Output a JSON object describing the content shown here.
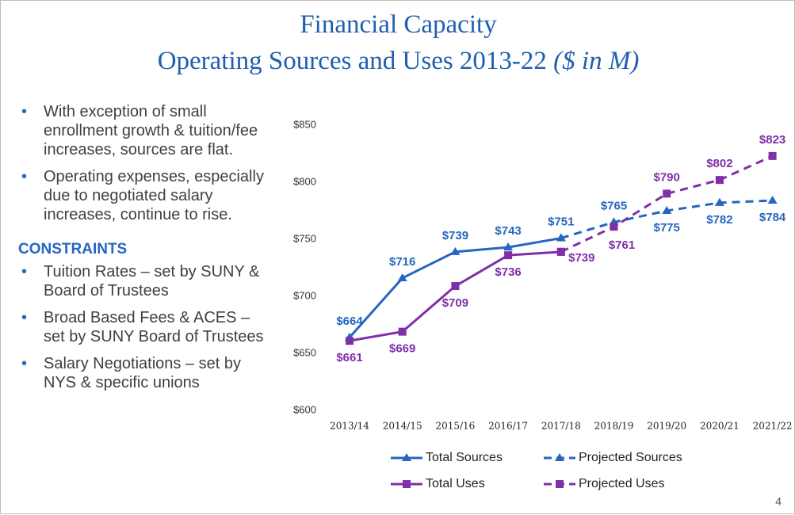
{
  "title": "Financial Capacity",
  "subtitle": "Operating Sources and Uses 2013-22",
  "subtitle_unit": "($ in M)",
  "bullets": [
    "With exception of small enrollment growth & tuition/fee increases, sources are flat.",
    "Operating expenses, especially due to negotiated salary increases, continue to rise."
  ],
  "constraints_heading": "CONSTRAINTS",
  "constraints": [
    "Tuition Rates – set by SUNY & Board of Trustees",
    "Broad Based Fees & ACES – set by SUNY Board of Trustees",
    "Salary Negotiations – set by NYS & specific unions"
  ],
  "page_number": "4",
  "chart_data": {
    "type": "line",
    "categories": [
      "2013/14",
      "2014/15",
      "2015/16",
      "2016/17",
      "2017/18",
      "2018/19",
      "2019/20",
      "2020/21",
      "2021/22"
    ],
    "ylim": [
      600,
      850
    ],
    "yticks": [
      {
        "value": 600,
        "label": "$600"
      },
      {
        "value": 650,
        "label": "$650"
      },
      {
        "value": 700,
        "label": "$700"
      },
      {
        "value": 750,
        "label": "$750"
      },
      {
        "value": 800,
        "label": "$800"
      },
      {
        "value": 850,
        "label": "$850"
      }
    ],
    "grid": false,
    "series": [
      {
        "name": "Total Sources",
        "color": "#2566c0",
        "dash": false,
        "marker": "triangle",
        "values": [
          664,
          716,
          739,
          743,
          751,
          null,
          null,
          null,
          null
        ],
        "value_labels": [
          "$664",
          "$716",
          "$739",
          "$743",
          "$751",
          null,
          null,
          null,
          null
        ]
      },
      {
        "name": "Projected Sources",
        "color": "#2566c0",
        "dash": true,
        "marker": "triangle",
        "values": [
          null,
          null,
          null,
          null,
          751,
          765,
          775,
          782,
          784
        ],
        "value_labels": [
          null,
          null,
          null,
          null,
          null,
          "$765",
          "$775",
          "$782",
          "$784"
        ]
      },
      {
        "name": "Total Uses",
        "color": "#7f2fa8",
        "dash": false,
        "marker": "square",
        "values": [
          661,
          669,
          709,
          736,
          739,
          null,
          null,
          null,
          null
        ],
        "value_labels": [
          "$661",
          "$669",
          "$709",
          "$736",
          "$739",
          null,
          null,
          null,
          null
        ]
      },
      {
        "name": "Projected Uses",
        "color": "#7f2fa8",
        "dash": true,
        "marker": "square",
        "values": [
          null,
          null,
          null,
          null,
          739,
          761,
          790,
          802,
          823
        ],
        "value_labels": [
          null,
          null,
          null,
          null,
          null,
          "$761",
          "$790",
          "$802",
          "$823"
        ]
      }
    ]
  }
}
